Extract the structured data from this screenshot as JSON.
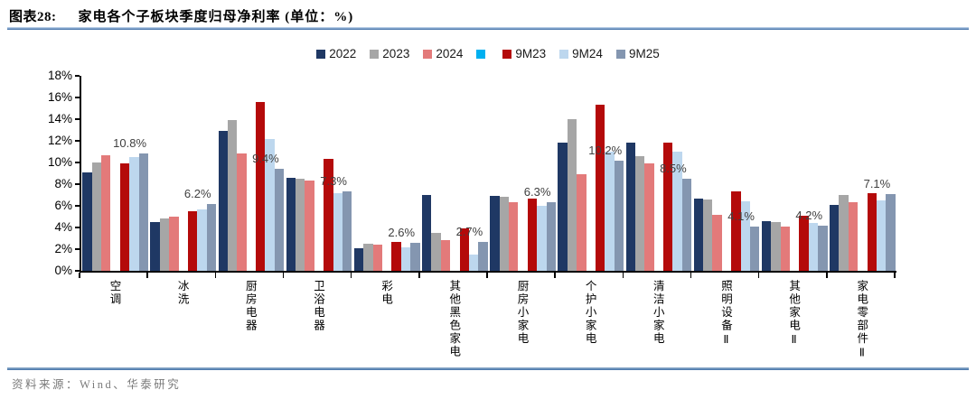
{
  "header": {
    "figure_label": "图表28:",
    "title": "家电各个子板块季度归母净利率 (单位：%)"
  },
  "footer": {
    "source": "资料来源：Wind、华泰研究"
  },
  "chart_data": {
    "type": "bar",
    "title": "家电各个子板块季度归母净利率",
    "unit": "%",
    "xlabel": "",
    "ylabel": "",
    "ylim": [
      0,
      18
    ],
    "y_tick_step": 2,
    "y_tick_labels": [
      "18%",
      "16%",
      "14%",
      "12%",
      "10%",
      "8%",
      "6%",
      "4%",
      "2%",
      "0%"
    ],
    "grid": false,
    "legend_position": "top",
    "categories": [
      "空调",
      "冰洗",
      "厨房电器",
      "卫浴电器",
      "彩电",
      "其他黑色家电",
      "厨房小家电",
      "个护小家电",
      "清洁小家电",
      "照明设备Ⅱ",
      "其他家电Ⅱ",
      "家电零部件Ⅱ"
    ],
    "series": [
      {
        "name": "2022",
        "color": "#1F3864",
        "values": [
          9.1,
          4.5,
          12.9,
          8.6,
          2.1,
          7.0,
          6.9,
          11.8,
          11.8,
          6.7,
          4.6,
          6.1
        ]
      },
      {
        "name": "2023",
        "color": "#A6A6A6",
        "values": [
          10.0,
          4.8,
          13.9,
          8.5,
          2.5,
          3.5,
          6.8,
          14.0,
          10.6,
          6.6,
          4.5,
          7.0
        ]
      },
      {
        "name": "2024",
        "color": "#E37A7A",
        "values": [
          10.7,
          5.0,
          10.8,
          8.3,
          2.4,
          2.8,
          6.3,
          8.9,
          9.9,
          5.2,
          4.1,
          6.3
        ]
      },
      {
        "name": "",
        "color": "#00B0F0",
        "values": [
          null,
          null,
          null,
          null,
          null,
          null,
          null,
          null,
          null,
          null,
          null,
          null
        ]
      },
      {
        "name": "9M23",
        "color": "#B40A0A",
        "values": [
          9.9,
          5.5,
          15.6,
          10.3,
          2.7,
          3.9,
          6.7,
          15.3,
          11.8,
          7.3,
          5.1,
          7.2
        ]
      },
      {
        "name": "9M24",
        "color": "#BDD7EE",
        "values": [
          10.5,
          5.7,
          12.2,
          7.2,
          2.2,
          1.5,
          6.0,
          11.0,
          11.0,
          6.4,
          4.4,
          6.5
        ]
      },
      {
        "name": "9M25",
        "color": "#8496B0",
        "values": [
          10.8,
          6.2,
          9.4,
          7.3,
          2.6,
          2.7,
          6.3,
          10.2,
          8.5,
          4.1,
          4.2,
          7.1
        ]
      }
    ],
    "data_labels_series": "9M25",
    "data_labels": [
      "10.8%",
      "6.2%",
      "9.4%",
      "7.3%",
      "2.6%",
      "2.7%",
      "6.3%",
      "10.2%",
      "8.5%",
      "4.1%",
      "4.2%",
      "7.1%"
    ]
  }
}
